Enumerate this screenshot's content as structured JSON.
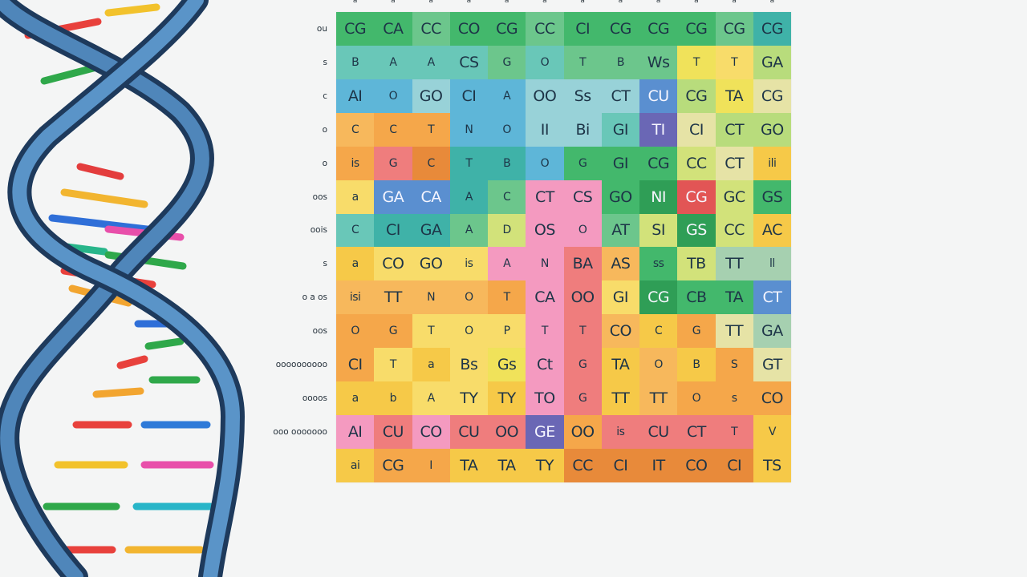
{
  "column_labels": [
    "a",
    "a",
    "a",
    "a",
    "a",
    "a",
    "a",
    "a",
    "a",
    "a",
    "a",
    "a"
  ],
  "row_labels": [
    "ou",
    "s",
    "c",
    "o",
    "o",
    "oos",
    "oois",
    "s",
    "o a os",
    "oos",
    "oooooooooo",
    "oooos",
    "ooo ooooooo",
    ""
  ],
  "palette": {
    "G": "#43b86c",
    "g": "#6cc68c",
    "T": "#3fb2a8",
    "t": "#69c7b8",
    "B": "#5eb6d8",
    "b": "#98d2d8",
    "Y": "#f6c948",
    "y": "#f8dc6a",
    "O": "#f5a74a",
    "o": "#f7b85c",
    "R": "#ef7d7d",
    "P": "#f49ac0",
    "p": "#f7b3cf",
    "L": "#d2e27a",
    "l": "#b8dc7c",
    "V": "#6a67b5",
    "D": "#2f9e56",
    "K": "#e25555",
    "N": "#5a8fd0",
    "E": "#f0e25a",
    "A": "#a6d0b0",
    "W": "#e6e3a6",
    "C": "#e88a3a"
  },
  "rows": [
    {
      "colors": "GGgGGgGGGGgT",
      "texts": [
        "CG",
        "CA",
        "CC",
        "CO",
        "CG",
        "CC",
        "CI",
        "CG",
        "CG",
        "CG",
        "CG",
        "CG"
      ]
    },
    {
      "colors": "ttttgtgggEyl",
      "texts": [
        "B",
        "A",
        "A",
        "CS",
        "G",
        "O",
        "T",
        "B",
        "Ws",
        "T",
        "T",
        "GA"
      ]
    },
    {
      "colors": "BBbBBbbbNlEW",
      "texts": [
        "AI",
        "O",
        "GO",
        "CI",
        "A",
        "OO",
        "Ss",
        "CT",
        "CU",
        "CG",
        "TA",
        "CG"
      ]
    },
    {
      "colors": "oOOBBbbtVWll",
      "texts": [
        "C",
        "C",
        "T",
        "N",
        "O",
        "II",
        "Bi",
        "GI",
        "TI",
        "CI",
        "CT",
        "GO"
      ]
    },
    {
      "colors": "ORCTTBGGGLWY",
      "texts": [
        "is",
        "G",
        "C",
        "T",
        "B",
        "O",
        "G",
        "GI",
        "CG",
        "CC",
        "CT",
        "ili"
      ]
    },
    {
      "colors": "yNNTgPPGDKLG",
      "texts": [
        "a",
        "GA",
        "CA",
        "A",
        "C",
        "CT",
        "CS",
        "GO",
        "NI",
        "CG",
        "GC",
        "GS"
      ]
    },
    {
      "colors": "tTTgLPPgLDLY",
      "texts": [
        "C",
        "CI",
        "GA",
        "A",
        "D",
        "OS",
        "O",
        "AT",
        "SI",
        "GS",
        "CC",
        "AC"
      ]
    },
    {
      "colors": "YyyyPPRoGLAA",
      "texts": [
        "a",
        "CO",
        "GO",
        "is",
        "A",
        "N",
        "BA",
        "AS",
        "ss",
        "TB",
        "TT",
        "ll"
      ]
    },
    {
      "colors": "ooooOPRyDGGN",
      "texts": [
        "isi",
        "TT",
        "N",
        "O",
        "T",
        "CA",
        "OO",
        "GI",
        "CG",
        "CB",
        "TA",
        "CT"
      ]
    },
    {
      "colors": "OOyyyPRoYOWA",
      "texts": [
        "O",
        "G",
        "T",
        "O",
        "P",
        "T",
        "T",
        "CO",
        "C",
        "G",
        "TT",
        "GA"
      ]
    },
    {
      "colors": "OyYyEPRYoYOW",
      "texts": [
        "CI",
        "T",
        "a",
        "Bs",
        "Gs",
        "Ct",
        "G",
        "TA",
        "O",
        "B",
        "S",
        "GT"
      ]
    },
    {
      "colors": "YYyyYPRYoOOO",
      "texts": [
        "a",
        "b",
        "A",
        "TY",
        "TY",
        "TO",
        "G",
        "TT",
        "TT",
        "O",
        "s",
        "CO"
      ]
    },
    {
      "colors": "PRPRRVORRRRY",
      "texts": [
        "AI",
        "CU",
        "CO",
        "CU",
        "OO",
        "GE",
        "OO",
        "is",
        "CU",
        "CT",
        "T",
        "V"
      ]
    },
    {
      "colors": "YOOYYYCCCCCY",
      "texts": [
        "ai",
        "CG",
        "I",
        "TA",
        "TA",
        "TY",
        "CC",
        "CI",
        "IT",
        "CO",
        "CI",
        "TS"
      ]
    }
  ]
}
